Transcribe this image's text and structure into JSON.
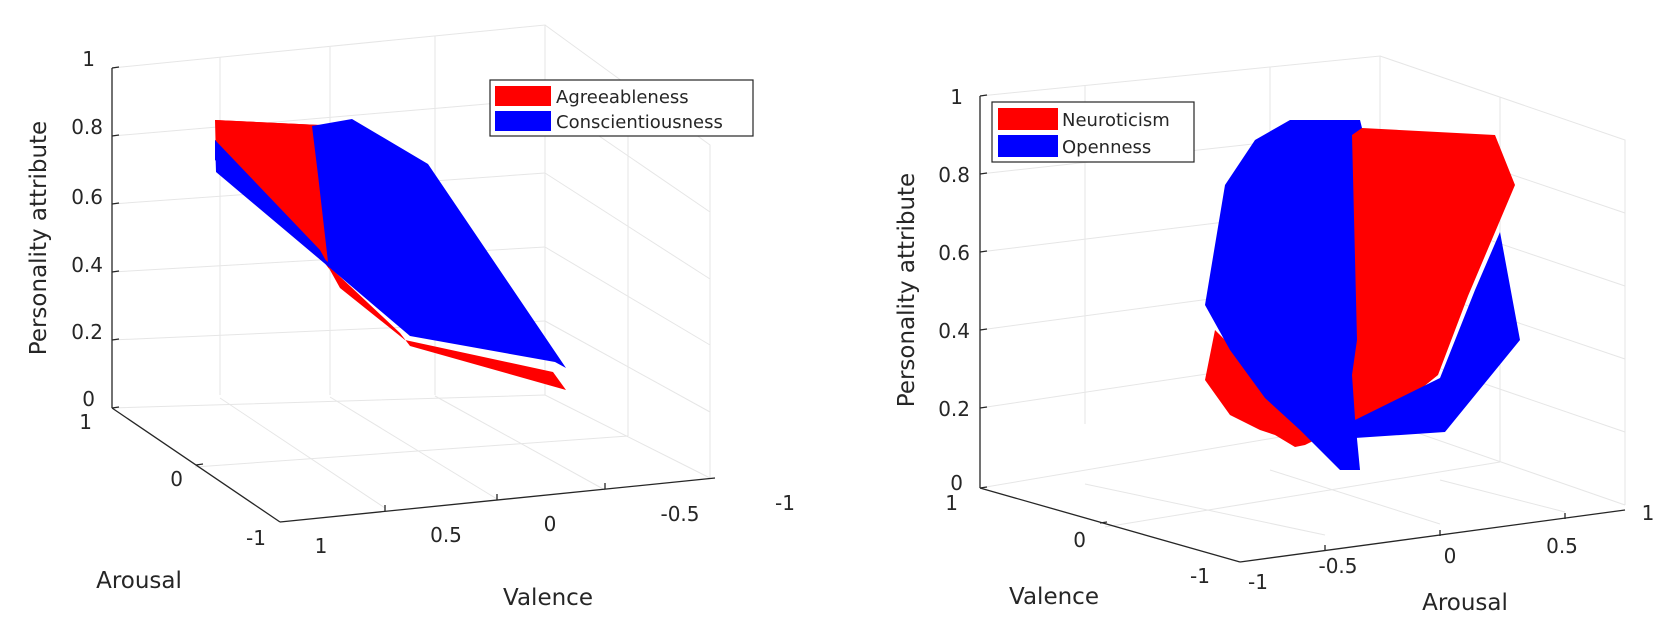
{
  "colors": {
    "red": "#ff0000",
    "blue": "#0000ff",
    "axis": "#262626",
    "grid": "#e6e6e6"
  },
  "chart_data": [
    {
      "type": "3d-surface",
      "zlabel": "Personality attribute",
      "xlabel": "Valence",
      "ylabel": "Arousal",
      "zlim": [
        0,
        1
      ],
      "x_ticks": [
        "1",
        "0.5",
        "0",
        "-0.5",
        "-1"
      ],
      "y_ticks": [
        "1",
        "0",
        "-1"
      ],
      "z_ticks": [
        "0",
        "0.2",
        "0.4",
        "0.6",
        "0.8",
        "1"
      ],
      "legend": {
        "position": "top-right",
        "entries": [
          "Agreeableness",
          "Conscientiousness"
        ]
      },
      "series": [
        {
          "name": "Agreeableness",
          "color": "#ff0000"
        },
        {
          "name": "Conscientiousness",
          "color": "#0000ff"
        }
      ]
    },
    {
      "type": "3d-surface",
      "zlabel": "Personality attribute",
      "xlabel": "Arousal",
      "ylabel": "Valence",
      "zlim": [
        0,
        1
      ],
      "x_ticks": [
        "-1",
        "-0.5",
        "0",
        "0.5",
        "1"
      ],
      "y_ticks": [
        "1",
        "0",
        "-1"
      ],
      "z_ticks": [
        "0",
        "0.2",
        "0.4",
        "0.6",
        "0.8",
        "1"
      ],
      "legend": {
        "position": "top-left",
        "entries": [
          "Neuroticism",
          "Openness"
        ]
      },
      "series": [
        {
          "name": "Neuroticism",
          "color": "#ff0000"
        },
        {
          "name": "Openness",
          "color": "#0000ff"
        }
      ]
    }
  ]
}
